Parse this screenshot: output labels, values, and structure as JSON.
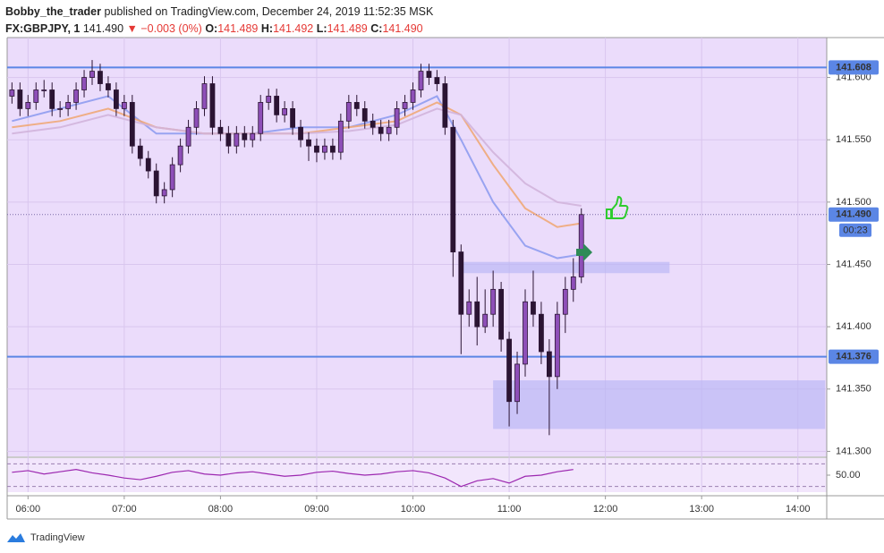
{
  "header": {
    "author": "Bobby_the_trader",
    "published": "published on TradingView.com, December 24, 2019 11:52:35 MSK",
    "symbol": "FX:GBPJPY, 1",
    "price": "141.490",
    "change": "▼ −0.003 (0%)",
    "ohlc": [
      {
        "label": "O:",
        "value": "141.489"
      },
      {
        "label": "H:",
        "value": "141.492"
      },
      {
        "label": "L:",
        "value": "141.489"
      },
      {
        "label": "C:",
        "value": "141.490"
      }
    ]
  },
  "footer": {
    "brand": "TradingView"
  },
  "chart_data": {
    "type": "candlestick",
    "x": [
      350,
      355,
      360,
      365,
      370,
      375,
      380,
      385,
      390,
      395,
      400,
      405,
      410,
      415,
      420,
      425,
      430,
      435,
      440,
      445,
      450,
      455,
      460,
      465,
      470,
      475,
      480,
      485,
      490,
      495,
      500,
      505,
      510,
      515,
      520,
      525,
      530,
      535,
      540,
      545,
      550,
      555,
      560,
      565,
      570,
      575,
      580,
      585,
      590,
      595,
      600,
      605,
      610,
      615,
      620,
      625,
      630,
      635,
      640,
      645,
      650,
      655,
      660,
      665,
      670,
      675,
      680,
      685,
      690,
      695,
      700,
      705
    ],
    "candles": [
      [
        141.585,
        141.596,
        141.579,
        141.59
      ],
      [
        141.59,
        141.596,
        141.569,
        141.575
      ],
      [
        141.575,
        141.586,
        141.569,
        141.58
      ],
      [
        141.58,
        141.596,
        141.574,
        141.59
      ],
      [
        141.59,
        141.598,
        141.584,
        141.59
      ],
      [
        141.59,
        141.596,
        141.569,
        141.575
      ],
      [
        141.575,
        141.581,
        141.568,
        141.575
      ],
      [
        141.575,
        141.586,
        141.569,
        141.58
      ],
      [
        141.58,
        141.596,
        141.574,
        141.59
      ],
      [
        141.59,
        141.606,
        141.584,
        141.6
      ],
      [
        141.6,
        141.614,
        141.594,
        141.605
      ],
      [
        141.605,
        141.611,
        141.589,
        141.595
      ],
      [
        141.595,
        141.601,
        141.584,
        141.59
      ],
      [
        141.59,
        141.596,
        141.569,
        141.575
      ],
      [
        141.575,
        141.586,
        141.569,
        141.58
      ],
      [
        141.58,
        141.586,
        141.539,
        141.545
      ],
      [
        141.545,
        141.551,
        141.529,
        141.535
      ],
      [
        141.535,
        141.541,
        141.519,
        141.525
      ],
      [
        141.525,
        141.531,
        141.499,
        141.505
      ],
      [
        141.505,
        141.516,
        141.499,
        141.51
      ],
      [
        141.51,
        141.536,
        141.504,
        141.53
      ],
      [
        141.53,
        141.551,
        141.524,
        141.545
      ],
      [
        141.545,
        141.566,
        141.539,
        141.56
      ],
      [
        141.56,
        141.581,
        141.554,
        141.575
      ],
      [
        141.575,
        141.601,
        141.569,
        141.595
      ],
      [
        141.595,
        141.601,
        141.554,
        141.56
      ],
      [
        141.56,
        141.566,
        141.549,
        141.555
      ],
      [
        141.555,
        141.561,
        141.539,
        141.545
      ],
      [
        141.545,
        141.561,
        141.539,
        141.555
      ],
      [
        141.555,
        141.561,
        141.544,
        141.55
      ],
      [
        141.55,
        141.561,
        141.544,
        141.555
      ],
      [
        141.555,
        141.586,
        141.549,
        141.58
      ],
      [
        141.58,
        141.591,
        141.574,
        141.585
      ],
      [
        141.585,
        141.591,
        141.564,
        141.57
      ],
      [
        141.57,
        141.581,
        141.564,
        141.575
      ],
      [
        141.575,
        141.581,
        141.554,
        141.56
      ],
      [
        141.56,
        141.566,
        141.544,
        141.55
      ],
      [
        141.55,
        141.556,
        141.533,
        141.545
      ],
      [
        141.545,
        141.551,
        141.532,
        141.54
      ],
      [
        141.54,
        141.551,
        141.534,
        141.545
      ],
      [
        141.545,
        141.551,
        141.534,
        141.54
      ],
      [
        141.54,
        141.571,
        141.534,
        141.565
      ],
      [
        141.565,
        141.586,
        141.559,
        141.58
      ],
      [
        141.58,
        141.586,
        141.569,
        141.575
      ],
      [
        141.575,
        141.581,
        141.559,
        141.565
      ],
      [
        141.565,
        141.571,
        141.554,
        141.56
      ],
      [
        141.56,
        141.566,
        141.549,
        141.555
      ],
      [
        141.555,
        141.566,
        141.549,
        141.56
      ],
      [
        141.56,
        141.581,
        141.554,
        141.575
      ],
      [
        141.575,
        141.586,
        141.569,
        141.58
      ],
      [
        141.58,
        141.596,
        141.574,
        141.59
      ],
      [
        141.59,
        141.611,
        141.584,
        141.605
      ],
      [
        141.605,
        141.611,
        141.594,
        141.6
      ],
      [
        141.6,
        141.606,
        141.589,
        141.595
      ],
      [
        141.595,
        141.601,
        141.554,
        141.56
      ],
      [
        141.56,
        141.566,
        141.44,
        141.46
      ],
      [
        141.46,
        141.466,
        141.378,
        141.41
      ],
      [
        141.41,
        141.43,
        141.4,
        141.42
      ],
      [
        141.42,
        141.44,
        141.385,
        141.4
      ],
      [
        141.4,
        141.43,
        141.395,
        141.41
      ],
      [
        141.41,
        141.445,
        141.4,
        141.43
      ],
      [
        141.43,
        141.436,
        141.38,
        141.39
      ],
      [
        141.39,
        141.396,
        141.32,
        141.34
      ],
      [
        141.34,
        141.38,
        141.33,
        141.37
      ],
      [
        141.37,
        141.43,
        141.36,
        141.42
      ],
      [
        141.42,
        141.445,
        141.4,
        141.41
      ],
      [
        141.41,
        141.42,
        141.37,
        141.38
      ],
      [
        141.38,
        141.39,
        141.313,
        141.36
      ],
      [
        141.36,
        141.42,
        141.35,
        141.41
      ],
      [
        141.41,
        141.44,
        141.395,
        141.43
      ],
      [
        141.43,
        141.455,
        141.42,
        141.44
      ],
      [
        141.44,
        141.495,
        141.435,
        141.49
      ]
    ],
    "up_color": "#8e4fb8",
    "down_color": "#2b1433",
    "averages": {
      "x": [
        350,
        380,
        410,
        440,
        470,
        500,
        530,
        560,
        590,
        615,
        630,
        650,
        670,
        690,
        705
      ],
      "series": [
        {
          "color": "#8f9cf0",
          "values": [
            141.565,
            141.575,
            141.585,
            141.555,
            141.555,
            141.555,
            141.56,
            141.56,
            141.57,
            141.585,
            141.55,
            141.5,
            141.465,
            141.455,
            141.458
          ]
        },
        {
          "color": "#f0a878",
          "values": [
            141.56,
            141.565,
            141.575,
            141.56,
            141.555,
            141.555,
            141.555,
            141.56,
            141.565,
            141.58,
            141.57,
            141.53,
            141.495,
            141.48,
            141.483
          ]
        },
        {
          "color": "#d2b4dc",
          "values": [
            141.555,
            141.56,
            141.57,
            141.56,
            141.555,
            141.555,
            141.555,
            141.557,
            141.562,
            141.575,
            141.57,
            141.54,
            141.515,
            141.5,
            141.497
          ]
        }
      ]
    },
    "hlines": [
      {
        "value": 141.608,
        "label": "141.608"
      },
      {
        "value": 141.376,
        "label": "141.376"
      }
    ],
    "last": {
      "value": 141.49,
      "label": "141.490",
      "countdown": "00:23"
    },
    "zones": [
      {
        "xlim": [
          630,
          760
        ],
        "ylim": [
          141.443,
          141.452
        ]
      },
      {
        "xlim": [
          650,
          857
        ],
        "ylim": [
          141.318,
          141.357
        ]
      }
    ],
    "xlim": [
      347,
      858
    ],
    "xticks": [
      {
        "value": 360,
        "label": "06:00"
      },
      {
        "value": 420,
        "label": "07:00"
      },
      {
        "value": 480,
        "label": "08:00"
      },
      {
        "value": 540,
        "label": "09:00"
      },
      {
        "value": 600,
        "label": "10:00"
      },
      {
        "value": 660,
        "label": "11:00"
      },
      {
        "value": 720,
        "label": "12:00"
      },
      {
        "value": 780,
        "label": "13:00"
      },
      {
        "value": 840,
        "label": "14:00"
      }
    ],
    "ylim": [
      141.296,
      141.632
    ],
    "yticks": [
      {
        "value": 141.3,
        "label": "141.300"
      },
      {
        "value": 141.35,
        "label": "141.350"
      },
      {
        "value": 141.4,
        "label": "141.400"
      },
      {
        "value": 141.45,
        "label": "141.450"
      },
      {
        "value": 141.5,
        "label": "141.500"
      },
      {
        "value": 141.55,
        "label": "141.550"
      },
      {
        "value": 141.6,
        "label": "141.600"
      }
    ],
    "rsi": {
      "x": [
        350,
        360,
        370,
        380,
        390,
        400,
        410,
        420,
        430,
        440,
        450,
        460,
        470,
        480,
        490,
        500,
        510,
        520,
        530,
        540,
        550,
        560,
        570,
        580,
        590,
        600,
        610,
        620,
        630,
        640,
        650,
        660,
        670,
        680,
        690,
        700
      ],
      "values": [
        55,
        58,
        52,
        56,
        60,
        54,
        50,
        45,
        42,
        48,
        55,
        58,
        52,
        50,
        54,
        56,
        52,
        48,
        50,
        55,
        57,
        53,
        50,
        52,
        56,
        58,
        54,
        45,
        30,
        40,
        44,
        36,
        48,
        50,
        56,
        60
      ],
      "color": "#9c27b0",
      "ylim": [
        20,
        80
      ],
      "levels": [
        70,
        30
      ],
      "yticks": [
        {
          "value": 50,
          "label": "50.00"
        }
      ]
    }
  }
}
